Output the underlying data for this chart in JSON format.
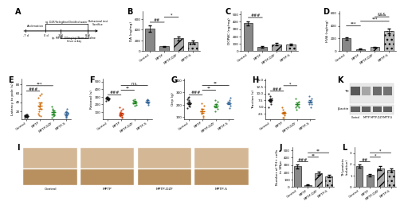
{
  "categories": [
    "Control",
    "MPTP",
    "MPTP-DZF",
    "MPTP-S"
  ],
  "panel_B": {
    "label": "B",
    "ylabel": "DA (ng/mg)",
    "values": [
      420,
      85,
      235,
      170
    ],
    "errors": [
      65,
      12,
      38,
      28
    ],
    "hatch": [
      "",
      "",
      "///",
      "..."
    ],
    "bar_color": [
      "#888888",
      "#888888",
      "#aaaaaa",
      "#bbbbbb"
    ],
    "sig_lines": [
      [
        "##",
        0,
        1
      ],
      [
        "*",
        1,
        2
      ]
    ]
  },
  "panel_C": {
    "label": "C",
    "ylabel": "DOPAC (ng/mg)",
    "values": [
      380,
      55,
      90,
      85
    ],
    "errors": [
      30,
      8,
      15,
      12
    ],
    "hatch": [
      "",
      "",
      "///",
      "..."
    ],
    "bar_color": [
      "#888888",
      "#888888",
      "#aaaaaa",
      "#bbbbbb"
    ],
    "sig_lines": [
      [
        "###",
        0,
        1
      ]
    ]
  },
  "panel_D": {
    "label": "D",
    "ylabel": "HVA (ng/mg)",
    "values": [
      200,
      30,
      60,
      320
    ],
    "errors": [
      22,
      6,
      10,
      38
    ],
    "hatch": [
      "",
      "",
      "///",
      "..."
    ],
    "bar_color": [
      "#888888",
      "#888888",
      "#aaaaaa",
      "#bbbbbb"
    ],
    "sig_lines": [
      [
        "***",
        0,
        1
      ],
      [
        "***",
        1,
        3
      ],
      [
        "&&&",
        2,
        3
      ]
    ]
  },
  "panel_E": {
    "label": "E",
    "ylabel": "Latency to pole (s)",
    "scatter_y": [
      [
        5,
        6,
        7,
        8,
        8,
        9,
        9,
        10,
        11,
        12,
        13
      ],
      [
        8,
        10,
        15,
        20,
        25,
        30,
        35,
        40,
        50,
        55,
        60
      ],
      [
        5,
        8,
        10,
        12,
        15,
        18,
        22,
        25,
        30
      ],
      [
        5,
        7,
        9,
        12,
        14,
        16,
        20,
        25
      ]
    ],
    "means": [
      9,
      32,
      17,
      14
    ],
    "sems": [
      1.5,
      7,
      4,
      3.5
    ],
    "colors": [
      "#111111",
      "#cc6600",
      "#228822",
      "#336699"
    ],
    "sig_pairs": [
      [
        0,
        1,
        "###"
      ],
      [
        0,
        2,
        "***"
      ]
    ]
  },
  "panel_F": {
    "label": "F",
    "ylabel": "Rotarod (s)",
    "scatter_y": [
      [
        250,
        260,
        265,
        270,
        275,
        280,
        285,
        290,
        295,
        300
      ],
      [
        25,
        35,
        45,
        55,
        65,
        80,
        100,
        120,
        140,
        160
      ],
      [
        180,
        195,
        210,
        225,
        240,
        255,
        270
      ],
      [
        195,
        210,
        225,
        240,
        255,
        270
      ]
    ],
    "means": [
      275,
      75,
      230,
      240
    ],
    "sems": [
      12,
      18,
      18,
      16
    ],
    "colors": [
      "#111111",
      "#cc3300",
      "#228822",
      "#336699"
    ],
    "sig_pairs": [
      [
        0,
        1,
        "###"
      ],
      [
        1,
        2,
        "**"
      ],
      [
        1,
        3,
        "n.s."
      ]
    ]
  },
  "panel_G": {
    "label": "G",
    "ylabel": "Grip (g)",
    "scatter_y": [
      [
        175,
        185,
        195,
        205,
        215,
        225,
        235,
        245,
        255,
        265
      ],
      [
        95,
        110,
        130,
        150,
        170,
        190,
        210
      ],
      [
        145,
        165,
        185,
        205,
        225,
        240
      ],
      [
        175,
        195,
        215,
        235,
        255
      ]
    ],
    "means": [
      215,
      150,
      195,
      215
    ],
    "sems": [
      11,
      16,
      13,
      11
    ],
    "colors": [
      "#111111",
      "#cc6600",
      "#228822",
      "#336699"
    ],
    "sig_pairs": [
      [
        0,
        1,
        "###"
      ],
      [
        1,
        2,
        "**"
      ],
      [
        1,
        3,
        "**"
      ]
    ]
  },
  "panel_H": {
    "label": "H",
    "ylabel": "Traction (s)",
    "scatter_y": [
      [
        5,
        6,
        7,
        7,
        8,
        8,
        9,
        10
      ],
      [
        1,
        1,
        2,
        3,
        4,
        5
      ],
      [
        4,
        5,
        5,
        6,
        7,
        8
      ],
      [
        5,
        6,
        6,
        7,
        8,
        9
      ]
    ],
    "means": [
      7.5,
      2.8,
      6.0,
      7.0
    ],
    "sems": [
      0.4,
      0.4,
      0.5,
      0.4
    ],
    "colors": [
      "#111111",
      "#cc6600",
      "#228822",
      "#336699"
    ],
    "sig_pairs": [
      [
        0,
        1,
        "###"
      ],
      [
        1,
        2,
        "*"
      ]
    ]
  },
  "panel_J": {
    "label": "J",
    "ylabel": "Number of TH+ cells\nin SNpc",
    "values": [
      280,
      28,
      185,
      145
    ],
    "errors": [
      28,
      6,
      22,
      18
    ],
    "hatch": [
      "",
      "",
      "///",
      "..."
    ],
    "bar_color": [
      "#888888",
      "#888888",
      "#aaaaaa",
      "#bbbbbb"
    ],
    "sig_lines": [
      [
        "###",
        0,
        1
      ],
      [
        "**",
        1,
        2
      ],
      [
        "**",
        1,
        3
      ]
    ]
  },
  "panel_L": {
    "label": "L",
    "ylabel": "TH protein\n(relative)",
    "values": [
      1.85,
      1.05,
      1.65,
      1.5
    ],
    "errors": [
      0.14,
      0.11,
      0.17,
      0.14
    ],
    "hatch": [
      "",
      "",
      "///",
      "..."
    ],
    "bar_color": [
      "#888888",
      "#888888",
      "#aaaaaa",
      "#bbbbbb"
    ],
    "sig_lines": [
      [
        "##",
        0,
        1
      ],
      [
        "*",
        1,
        2
      ],
      [
        "*",
        1,
        3
      ]
    ]
  },
  "panel_K": {
    "label": "K",
    "TH_intensity": [
      0.35,
      0.65,
      0.42,
      0.45
    ],
    "actin_intensity": [
      0.38,
      0.38,
      0.38,
      0.38
    ],
    "lane_labels": [
      "Control",
      "MPTP",
      "MPTP-DZF",
      "MPTP-S"
    ]
  },
  "panel_I": {
    "label": "I",
    "sublabels": [
      "Control",
      "MPTP",
      "MPTP-DZF",
      "MPTP-S"
    ],
    "bg_colors": [
      "#c8a878",
      "#c8a878",
      "#c8a878",
      "#c8a878"
    ]
  },
  "bg_color": "#ffffff"
}
